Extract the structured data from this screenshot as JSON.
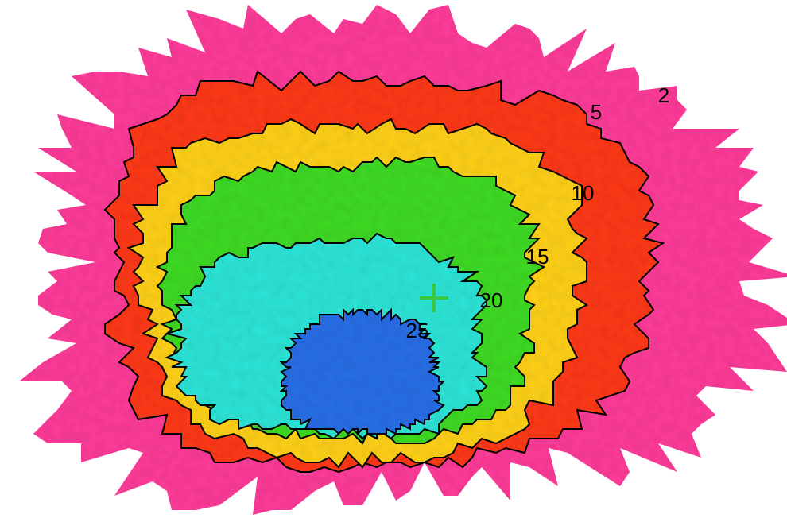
{
  "chart_data": {
    "type": "contour",
    "levels": [
      2,
      5,
      10,
      15,
      20,
      25
    ],
    "colors": [
      "#ff3d9a",
      "#ff3a1e",
      "#ffd21e",
      "#3fdc28",
      "#2fe6d8",
      "#2a6fe8"
    ]
  }
}
